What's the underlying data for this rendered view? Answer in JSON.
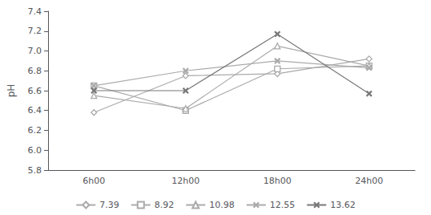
{
  "chart_data": {
    "type": "line",
    "ylabel": "pH",
    "categories": [
      "6h00",
      "12h00",
      "18h00",
      "24h00"
    ],
    "series": [
      {
        "name": "7.39",
        "color": "#aaaaaa",
        "marker": "diamond",
        "values": [
          6.38,
          6.75,
          6.77,
          6.92
        ]
      },
      {
        "name": "8.92",
        "color": "#aaaaaa",
        "marker": "square",
        "values": [
          6.65,
          6.4,
          6.82,
          6.85
        ]
      },
      {
        "name": "10.98",
        "color": "#aaaaaa",
        "marker": "triangle",
        "values": [
          6.55,
          6.42,
          7.05,
          6.85
        ]
      },
      {
        "name": "12.55",
        "color": "#aaaaaa",
        "marker": "x",
        "values": [
          6.65,
          6.8,
          6.9,
          6.83
        ]
      },
      {
        "name": "13.62",
        "color": "#777777",
        "marker": "x",
        "values": [
          6.6,
          6.6,
          7.17,
          6.57
        ]
      }
    ],
    "line_style": "solid",
    "ylim": [
      5.8,
      7.4
    ],
    "yticks": [
      5.8,
      {
        "value": 6,
        "label": "6.0"
      },
      6.2,
      6.4,
      6.6,
      6.8,
      {
        "value": 7,
        "label": "7.0"
      },
      7.2,
      7.4
    ],
    "grid": false,
    "legend": "bottom"
  }
}
